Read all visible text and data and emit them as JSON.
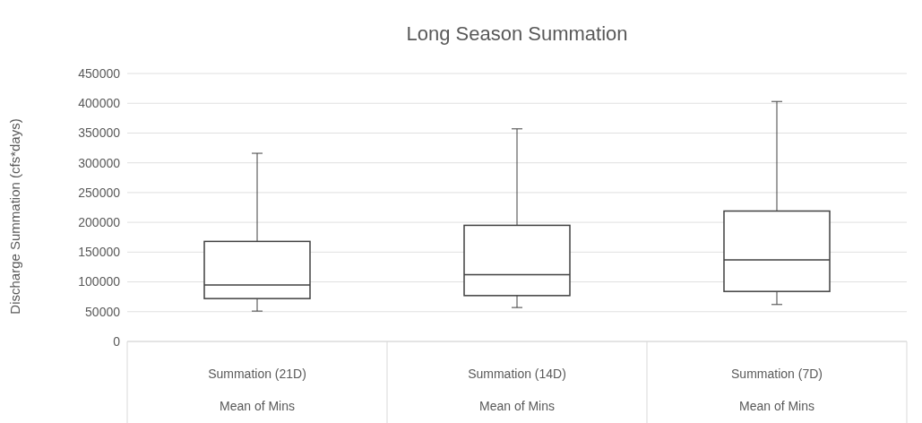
{
  "chart_data": {
    "type": "box",
    "title": "Long Season Summation",
    "ylabel": "Discharge Summation (cfs*days)",
    "categories": [
      "Summation (21D)",
      "Summation (14D)",
      "Summation (7D)"
    ],
    "boxes": [
      {
        "low": 51000,
        "q1": 72000,
        "median": 95000,
        "q3": 168000,
        "high": 316000
      },
      {
        "low": 57000,
        "q1": 77000,
        "median": 112000,
        "q3": 195000,
        "high": 357000
      },
      {
        "low": 62000,
        "q1": 84000,
        "median": 137000,
        "q3": 219000,
        "high": 403000
      }
    ],
    "annotations": [
      "Mean of Mins",
      "Mean of Mins",
      "Mean of Mins"
    ],
    "ylim": [
      0,
      450000
    ],
    "yticks": [
      0,
      50000,
      100000,
      150000,
      200000,
      250000,
      300000,
      350000,
      400000,
      450000
    ],
    "grid": "y",
    "color": "#404040"
  }
}
